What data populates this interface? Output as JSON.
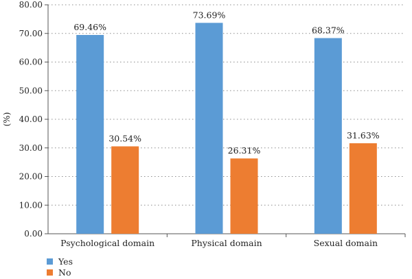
{
  "chart_data": {
    "type": "bar",
    "categories": [
      "Psychological domain",
      "Physical domain",
      "Sexual domain"
    ],
    "series": [
      {
        "name": "Yes",
        "values": [
          69.46,
          73.69,
          68.37
        ],
        "labels": [
          "69.46%",
          "73.69%",
          "68.37%"
        ],
        "color": "#5b9bd5"
      },
      {
        "name": "No",
        "values": [
          30.54,
          26.31,
          31.63
        ],
        "labels": [
          "30.54%",
          "26.31%",
          "31.63%"
        ],
        "color": "#ed7d31"
      }
    ],
    "ylabel": "(%)",
    "ylim": [
      0,
      80
    ],
    "yticks": [
      "0.00",
      "10.00",
      "20.00",
      "30.00",
      "40.00",
      "50.00",
      "60.00",
      "70.00",
      "80.00"
    ],
    "grid": true,
    "legend_position": "bottom-left"
  }
}
